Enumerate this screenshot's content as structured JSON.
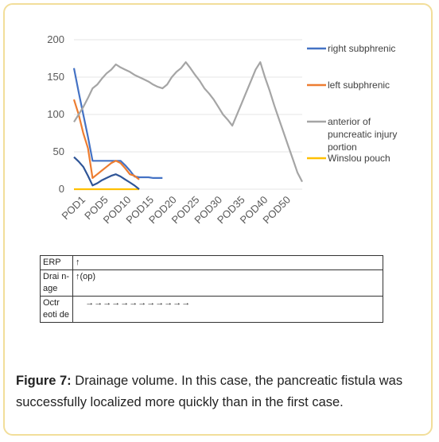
{
  "chart_data": {
    "type": "line",
    "title": "",
    "xlabel": "",
    "ylabel": "",
    "ylim": [
      0,
      200
    ],
    "yticks": [
      0,
      50,
      100,
      150,
      200
    ],
    "categories": [
      "POD1",
      "POD5",
      "POD10",
      "POD15",
      "POD20",
      "POD25",
      "POD30",
      "POD35",
      "POD40",
      "POD50"
    ],
    "grid": true,
    "legend_position": "right",
    "series": [
      {
        "name": "right subphrenic",
        "color": "#4472c4",
        "x": [
          1,
          2,
          3,
          4,
          5,
          6,
          7,
          8,
          9,
          10,
          11,
          12,
          13,
          14,
          15,
          16,
          17,
          18,
          19,
          20
        ],
        "values": [
          162,
          130,
          100,
          70,
          38,
          38,
          38,
          38,
          38,
          38,
          38,
          32,
          25,
          17,
          16,
          16,
          16,
          15,
          15,
          15
        ]
      },
      {
        "name": "left subphrenic",
        "color": "#ed7d31",
        "x": [
          1,
          2,
          3,
          4,
          5,
          6,
          7,
          8,
          9,
          10,
          11,
          12,
          13,
          14,
          15
        ],
        "values": [
          120,
          100,
          75,
          55,
          15,
          20,
          25,
          30,
          35,
          38,
          35,
          28,
          20,
          18,
          13
        ]
      },
      {
        "name": "anterior of puncreatic injury portion",
        "color": "#a5a5a5",
        "x": [
          1,
          2,
          3,
          4,
          5,
          6,
          7,
          8,
          9,
          10,
          11,
          12,
          13,
          14,
          15,
          16,
          17,
          18,
          19,
          20,
          21,
          22,
          23,
          24,
          25,
          26,
          27,
          28,
          29,
          30,
          31,
          32,
          33,
          34,
          35,
          36,
          37,
          38,
          39,
          40,
          41,
          42,
          43,
          44,
          45,
          46,
          47,
          48,
          49,
          50
        ],
        "values": [
          90,
          100,
          110,
          122,
          135,
          140,
          148,
          155,
          160,
          167,
          163,
          160,
          157,
          153,
          150,
          147,
          144,
          140,
          137,
          135,
          140,
          150,
          157,
          162,
          170,
          162,
          153,
          145,
          135,
          128,
          120,
          110,
          100,
          93,
          85,
          100,
          115,
          130,
          145,
          160,
          170,
          150,
          132,
          112,
          94,
          76,
          58,
          40,
          22,
          10
        ]
      },
      {
        "name": "Winslou pouch",
        "color": "#ffc000",
        "x": [
          1,
          2,
          3,
          4,
          5,
          6,
          7,
          8,
          9,
          10,
          11,
          12,
          13,
          14,
          15
        ],
        "values": [
          0,
          0,
          0,
          0,
          0,
          0,
          0,
          0,
          0,
          0,
          0,
          0,
          0,
          0,
          0
        ]
      },
      {
        "name": "",
        "color": "#2f5597",
        "x": [
          1,
          2,
          3,
          4,
          5,
          6,
          7,
          8,
          9,
          10,
          11,
          12,
          13,
          14,
          15
        ],
        "values": [
          43,
          37,
          30,
          18,
          5,
          8,
          12,
          15,
          18,
          20,
          17,
          13,
          9,
          5,
          0
        ]
      }
    ]
  },
  "table": {
    "rows": [
      {
        "label": "ERP",
        "content": "↑"
      },
      {
        "label": "Drai n- age",
        "content": "↑(op)"
      },
      {
        "label": "Octr eoti de",
        "content": "    →→→→→→→→→→→→"
      }
    ]
  },
  "caption": {
    "label": "Figure 7:",
    "text": " Drainage volume. In this case, the pancreatic fistula was successfully localized more quickly than in the first case."
  }
}
